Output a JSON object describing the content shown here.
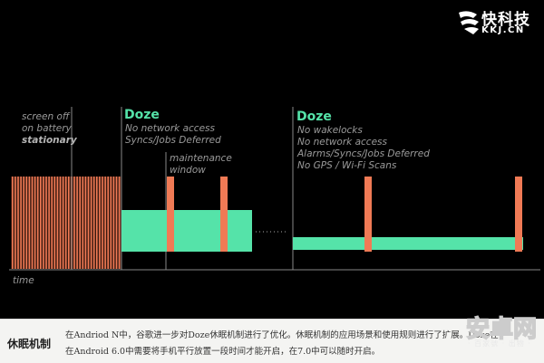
{
  "logo": {
    "name": "快科技",
    "domain": "KKJ.CN"
  },
  "labels": {
    "screen_off": "screen off",
    "on_battery": "on battery",
    "stationary": "stationary",
    "doze1_title": "Doze",
    "doze1_line1": "No network access",
    "doze1_line2": "Syncs/Jobs Deferred",
    "maint_line1": "maintenance",
    "maint_line2": "window",
    "doze2_title": "Doze",
    "doze2_lines": [
      "No wakelocks",
      "No network access",
      "Alarms/Syncs/Jobs Deferred",
      "No GPS / Wi-Fi Scans"
    ],
    "time": "time"
  },
  "colors": {
    "accent_green": "#55e3a9",
    "orange": "#f07a55",
    "gray_text": "#9a9a9a",
    "caption_bg": "#f4f4f2"
  },
  "caption": {
    "title": "休眠机制",
    "line1": "在Andriod N中，谷歌进一步对Doze休眠机制进行了优化。休眠机制的应用场景和使用规则进行了扩展。Doze在",
    "line2": "在Android 6.0中需要将手机平行放置一段时间才能开启，在7.0中可以随时开启。"
  },
  "watermark": {
    "text": "安卓网",
    "sub": "· 百家號 · 出物 ·"
  }
}
